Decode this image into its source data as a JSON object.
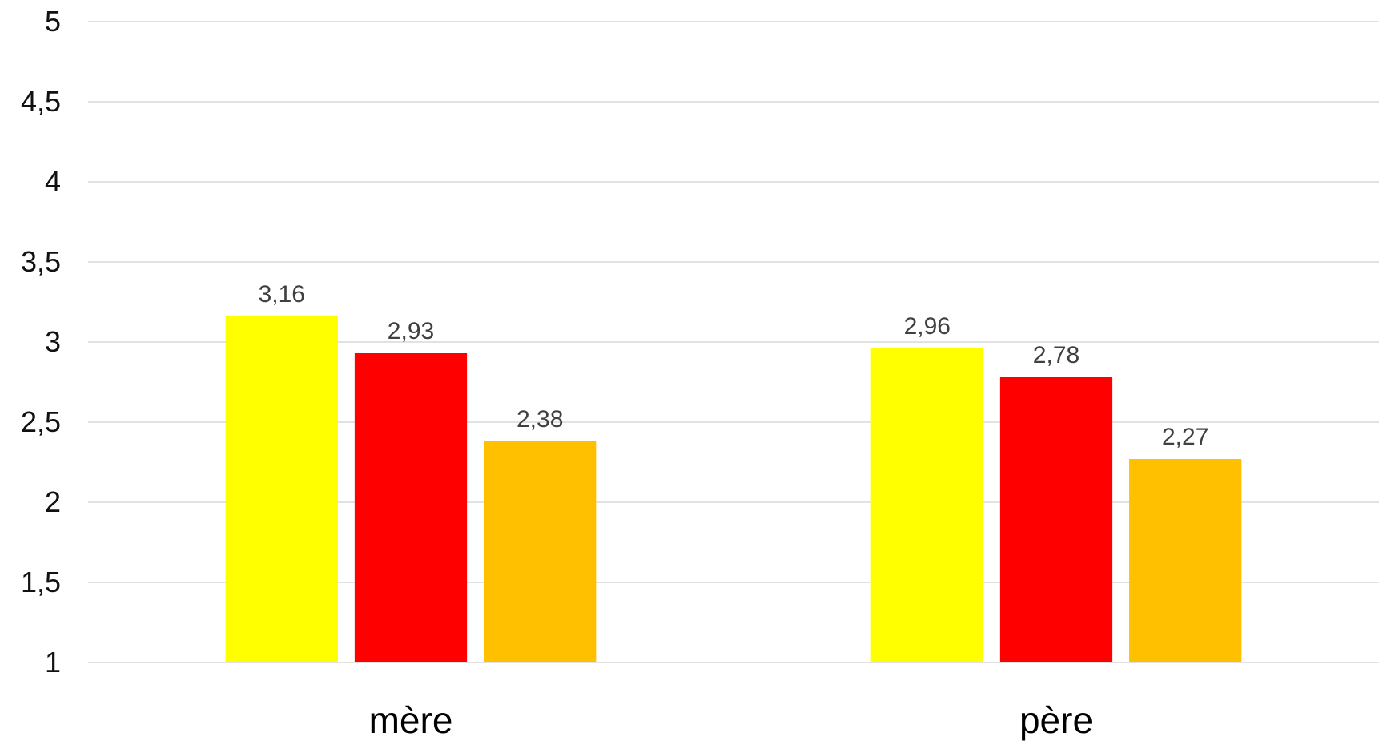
{
  "chart_data": {
    "type": "bar",
    "title": "",
    "xlabel": "",
    "ylabel": "",
    "categories": [
      "mère",
      "père"
    ],
    "series": [
      {
        "values": [
          3.16,
          2.96
        ],
        "color": "#FFFF00"
      },
      {
        "values": [
          2.93,
          2.78
        ],
        "color": "#FF0000"
      },
      {
        "values": [
          2.38,
          2.27
        ],
        "color": "#FFC000"
      }
    ],
    "data_labels": [
      [
        "3,16",
        "2,96"
      ],
      [
        "2,93",
        "2,78"
      ],
      [
        "2,38",
        "2,27"
      ]
    ],
    "ylim": [
      1,
      5
    ],
    "yticks": [
      1,
      1.5,
      2,
      2.5,
      3,
      3.5,
      4,
      4.5,
      5
    ],
    "ytick_labels": [
      "1",
      "1,5",
      "2",
      "2,5",
      "3",
      "3,5",
      "4",
      "4,5",
      "5"
    ],
    "grid": true,
    "legend": "none"
  }
}
